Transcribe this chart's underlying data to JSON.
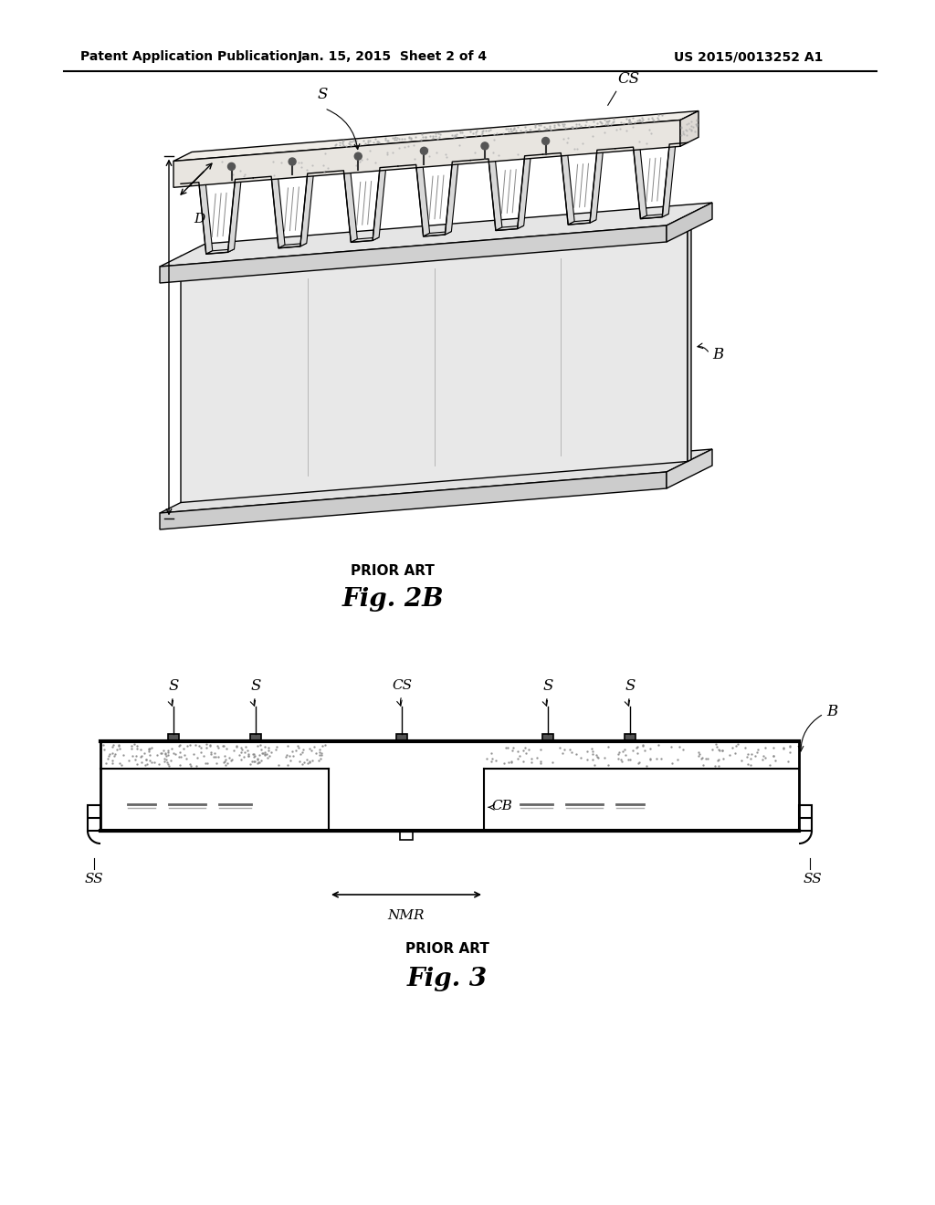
{
  "bg_color": "#ffffff",
  "header_left": "Patent Application Publication",
  "header_center": "Jan. 15, 2015  Sheet 2 of 4",
  "header_right": "US 2015/0013252 A1",
  "fig2b_prior_art": "PRIOR ART",
  "fig2b_label": "Fig. 2B",
  "fig3_prior_art": "PRIOR ART",
  "fig3_label": "Fig. 3",
  "line_color": "#000000",
  "bg_color_slab": "#f5f3f0",
  "bg_color_deck": "#eeeeee",
  "bg_color_beam": "#e8e8e8"
}
